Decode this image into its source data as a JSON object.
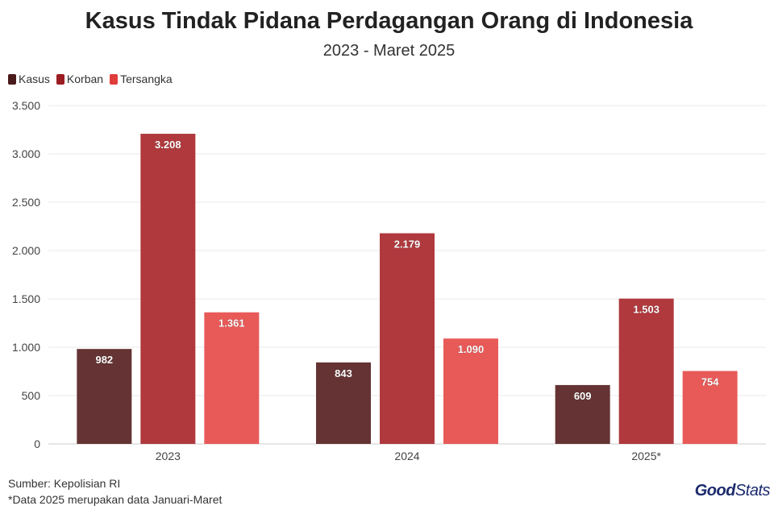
{
  "title": "Kasus Tindak Pidana Perdagangan Orang di Indonesia",
  "subtitle": "2023 - Maret 2025",
  "footer": {
    "source": "Sumber: Kepolisian RI",
    "note": "*Data 2025 merupakan data Januari-Maret"
  },
  "logo": {
    "part1": "Good",
    "part2": "Stats"
  },
  "chart_data": {
    "type": "bar",
    "categories": [
      "2023",
      "2024",
      "2025*"
    ],
    "series": [
      {
        "name": "Kasus",
        "values": [
          982,
          843,
          609
        ],
        "labels": [
          "982",
          "843",
          "609"
        ],
        "color": "#653333"
      },
      {
        "name": "Korban",
        "values": [
          3208,
          2179,
          1503
        ],
        "labels": [
          "3.208",
          "2.179",
          "1.503"
        ],
        "color": "#b0393d"
      },
      {
        "name": "Tersangka",
        "values": [
          1361,
          1090,
          754
        ],
        "labels": [
          "1.361",
          "1.090",
          "754"
        ],
        "color": "#e85a58"
      }
    ],
    "ylim": [
      0,
      3500
    ],
    "yticks": [
      0,
      500,
      1000,
      1500,
      2000,
      2500,
      3000,
      3500
    ],
    "ytick_labels": [
      "0",
      "500",
      "1.000",
      "1.500",
      "2.000",
      "2.500",
      "3.000",
      "3.500"
    ],
    "grid": true,
    "legend_position": "top-left",
    "xlabel": "",
    "ylabel": ""
  }
}
